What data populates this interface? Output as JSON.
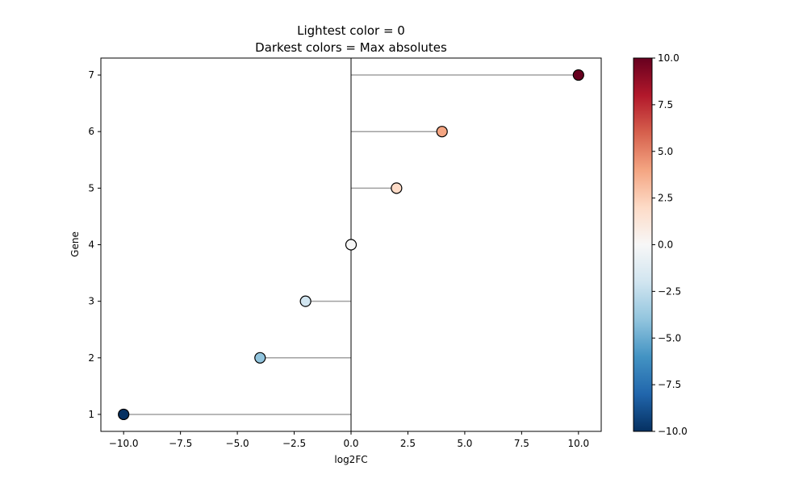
{
  "chart_data": {
    "type": "scatter",
    "subtype": "lollipop",
    "title_line1": "Lightest color = 0",
    "title_line2": "Darkest colors = Max absolutes",
    "xlabel": "log2FC",
    "ylabel": "Gene",
    "xlim": [
      -11.0,
      11.0
    ],
    "ylim": [
      0.7,
      7.3
    ],
    "x_ticks": [
      -10.0,
      -7.5,
      -5.0,
      -2.5,
      0.0,
      2.5,
      5.0,
      7.5,
      10.0
    ],
    "x_tick_labels": [
      "−10.0",
      "−7.5",
      "−5.0",
      "−2.5",
      "0.0",
      "2.5",
      "5.0",
      "7.5",
      "10.0"
    ],
    "y_ticks": [
      1,
      2,
      3,
      4,
      5,
      6,
      7
    ],
    "y_tick_labels": [
      "1",
      "2",
      "3",
      "4",
      "5",
      "6",
      "7"
    ],
    "points": [
      {
        "gene": 1,
        "log2FC": -10
      },
      {
        "gene": 2,
        "log2FC": -4
      },
      {
        "gene": 3,
        "log2FC": -2
      },
      {
        "gene": 4,
        "log2FC": 0
      },
      {
        "gene": 5,
        "log2FC": 2
      },
      {
        "gene": 6,
        "log2FC": 4
      },
      {
        "gene": 7,
        "log2FC": 10
      }
    ],
    "zero_line": 0,
    "stem_color": "#a0a0a0",
    "colormap": "RdBu_r",
    "colorbar": {
      "vmin": -10,
      "vmax": 10,
      "ticks": [
        -10.0,
        -7.5,
        -5.0,
        -2.5,
        0.0,
        2.5,
        5.0,
        7.5,
        10.0
      ],
      "tick_labels": [
        "−10.0",
        "−7.5",
        "−5.0",
        "−2.5",
        "0.0",
        "2.5",
        "5.0",
        "7.5",
        "10.0"
      ],
      "stops": [
        "#053061",
        "#2166ac",
        "#4393c3",
        "#92c5de",
        "#d1e5f0",
        "#f7f7f7",
        "#fddbc7",
        "#f4a582",
        "#d6604d",
        "#b2182b",
        "#67001f"
      ]
    },
    "grid": false,
    "legend": "none"
  }
}
